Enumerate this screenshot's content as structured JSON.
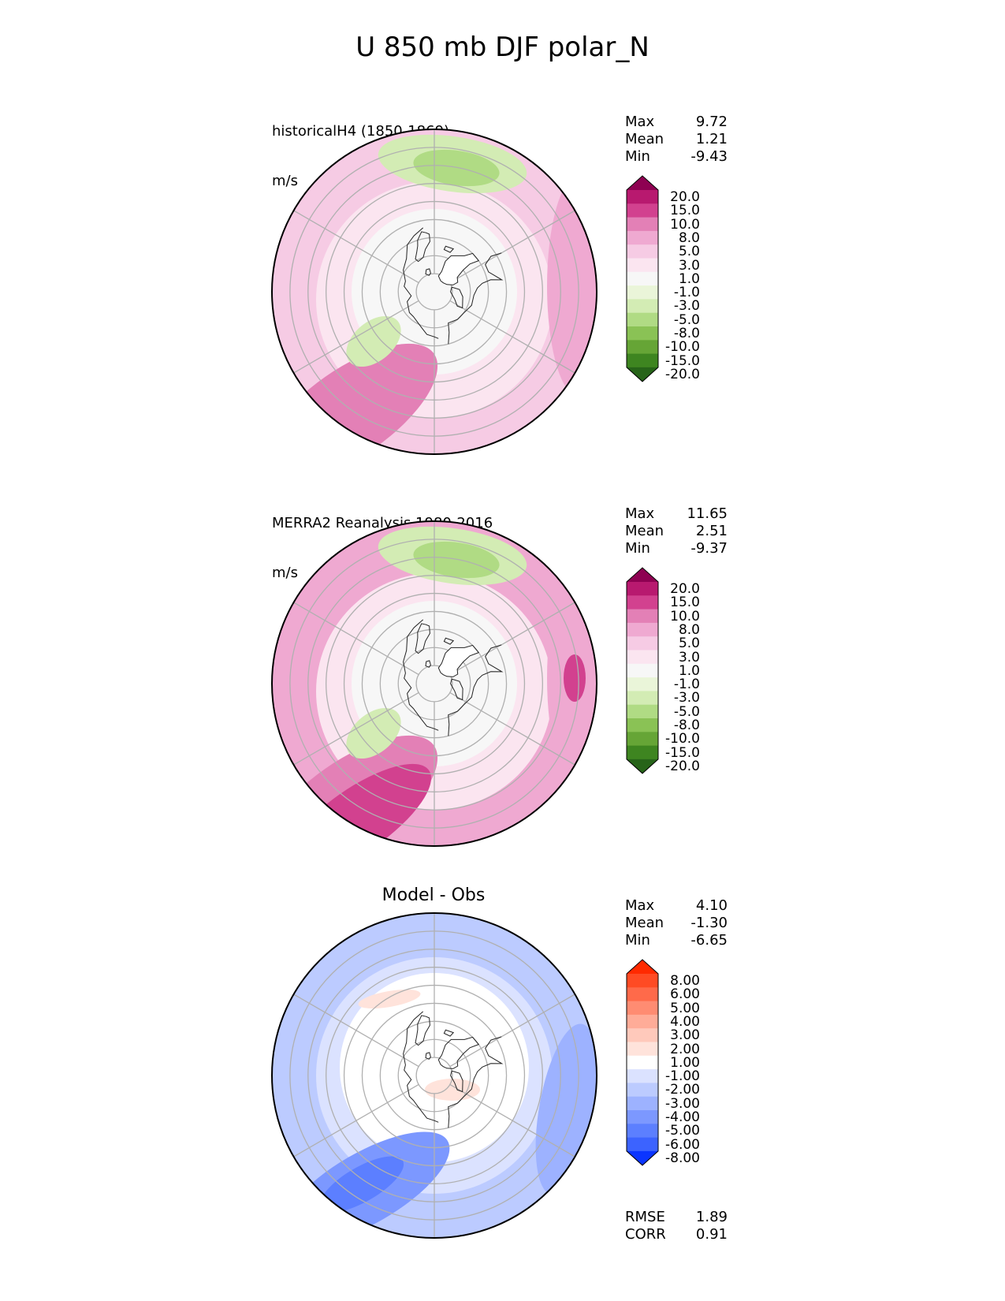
{
  "figure": {
    "title": "U 850 mb DJF polar_N"
  },
  "panels": [
    {
      "id": "model",
      "subtitle_line1": "historicalH4 (1850-1869)",
      "subtitle_line2": "m/s",
      "stats": {
        "max_label": "Max",
        "max": "9.72",
        "mean_label": "Mean",
        "mean": "1.21",
        "min_label": "Min",
        "min": "-9.43"
      },
      "colorbar": {
        "labels": [
          "20.0",
          "15.0",
          "10.0",
          "8.0",
          "5.0",
          "3.0",
          "1.0",
          "-1.0",
          "-3.0",
          "-5.0",
          "-8.0",
          "-10.0",
          "-15.0",
          "-20.0"
        ],
        "colors": [
          "#8e0152",
          "#b8196f",
          "#d2418f",
          "#e380b6",
          "#efa9d1",
          "#f6cbe4",
          "#fbe5f0",
          "#f7f7f7",
          "#eaf5d9",
          "#d3ecb4",
          "#b0db84",
          "#8ac255",
          "#66a536",
          "#3e8520",
          "#276419"
        ]
      }
    },
    {
      "id": "obs",
      "subtitle_line1": "MERRA2 Reanalysis 1980-2016",
      "subtitle_line2": "m/s",
      "stats": {
        "max_label": "Max",
        "max": "11.65",
        "mean_label": "Mean",
        "mean": "2.51",
        "min_label": "Min",
        "min": "-9.37"
      },
      "colorbar": {
        "labels": [
          "20.0",
          "15.0",
          "10.0",
          "8.0",
          "5.0",
          "3.0",
          "1.0",
          "-1.0",
          "-3.0",
          "-5.0",
          "-8.0",
          "-10.0",
          "-15.0",
          "-20.0"
        ],
        "colors": [
          "#8e0152",
          "#b8196f",
          "#d2418f",
          "#e380b6",
          "#efa9d1",
          "#f6cbe4",
          "#fbe5f0",
          "#f7f7f7",
          "#eaf5d9",
          "#d3ecb4",
          "#b0db84",
          "#8ac255",
          "#66a536",
          "#3e8520",
          "#276419"
        ]
      }
    },
    {
      "id": "diff",
      "title": "Model - Obs",
      "stats": {
        "max_label": "Max",
        "max": "4.10",
        "mean_label": "Mean",
        "mean": "-1.30",
        "min_label": "Min",
        "min": "-6.65"
      },
      "metrics": {
        "rmse_label": "RMSE",
        "rmse": "1.89",
        "corr_label": "CORR",
        "corr": "0.91"
      },
      "colorbar": {
        "labels": [
          "8.00",
          "6.00",
          "5.00",
          "4.00",
          "3.00",
          "2.00",
          "1.00",
          "-1.00",
          "-2.00",
          "-3.00",
          "-4.00",
          "-5.00",
          "-6.00",
          "-8.00"
        ],
        "colors": [
          "#ff2a00",
          "#ff4b24",
          "#ff6a4a",
          "#ff8c72",
          "#ffac98",
          "#ffc9bb",
          "#ffe3db",
          "#ffffff",
          "#dbe2ff",
          "#bccbff",
          "#9db2ff",
          "#7c98ff",
          "#5c7fff",
          "#3c63ff",
          "#0b35ff"
        ]
      }
    }
  ],
  "map_colors": {
    "land_outline": "#222222",
    "gridline": "#b0b0b0",
    "boundary": "#000000"
  }
}
